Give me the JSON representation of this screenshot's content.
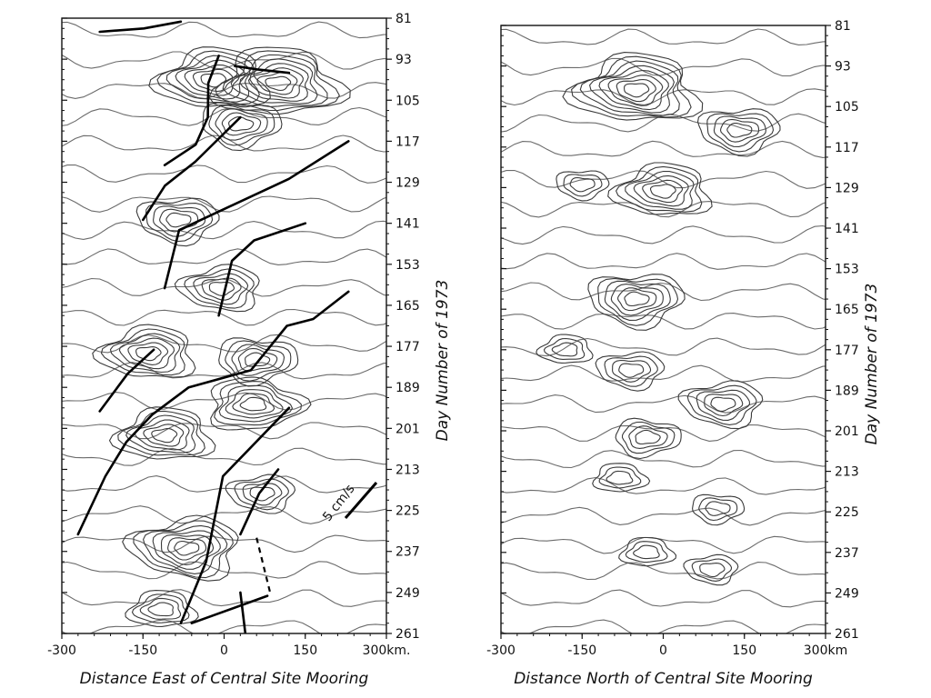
{
  "chart_data": [
    {
      "type": "contour",
      "xlabel": "Distance East of Central Site Mooring",
      "ylabel": "Day Number of 1973",
      "xlim": [
        -300,
        300
      ],
      "ylim": [
        81,
        261
      ],
      "x_ticks": [
        "-300",
        "-150",
        "0",
        "150",
        "300"
      ],
      "x_unit": "km.",
      "y_ticks": [
        "81",
        "93",
        "105",
        "117",
        "129",
        "141",
        "153",
        "165",
        "177",
        "189",
        "201",
        "213",
        "225",
        "237",
        "249",
        "261"
      ],
      "y_inverted": true,
      "scale_bar_label": "5 cm/s",
      "centers": [
        {
          "x": -20,
          "day": 99,
          "rings": 7
        },
        {
          "x": 100,
          "day": 100,
          "rings": 8
        },
        {
          "x": 30,
          "day": 112,
          "rings": 5
        },
        {
          "x": -85,
          "day": 140,
          "rings": 5
        },
        {
          "x": -5,
          "day": 160,
          "rings": 5
        },
        {
          "x": -140,
          "day": 179,
          "rings": 6
        },
        {
          "x": 60,
          "day": 181,
          "rings": 5
        },
        {
          "x": 55,
          "day": 194,
          "rings": 6
        },
        {
          "x": -110,
          "day": 203,
          "rings": 6
        },
        {
          "x": 70,
          "day": 220,
          "rings": 4
        },
        {
          "x": -70,
          "day": 236,
          "rings": 7
        },
        {
          "x": -115,
          "day": 254,
          "rings": 4
        }
      ],
      "tracks": [
        [
          [
            -230,
            85
          ],
          [
            -150,
            84
          ],
          [
            -80,
            82
          ]
        ],
        [
          [
            -10,
            92
          ],
          [
            -25,
            100
          ],
          [
            -30,
            110
          ],
          [
            -50,
            118
          ],
          [
            -110,
            124
          ]
        ],
        [
          [
            20,
            95
          ],
          [
            60,
            96
          ],
          [
            120,
            97
          ]
        ],
        [
          [
            30,
            110
          ],
          [
            -50,
            123
          ],
          [
            -110,
            130
          ],
          [
            -150,
            140
          ]
        ],
        [
          [
            230,
            117
          ],
          [
            120,
            128
          ],
          [
            -80,
            143
          ],
          [
            -110,
            160
          ]
        ],
        [
          [
            150,
            141
          ],
          [
            60,
            146
          ],
          [
            10,
            152
          ],
          [
            -10,
            168
          ]
        ],
        [
          [
            230,
            161
          ],
          [
            160,
            169
          ],
          [
            120,
            171
          ],
          [
            50,
            184
          ],
          [
            -70,
            189
          ],
          [
            -130,
            197
          ],
          [
            -180,
            205
          ],
          [
            -220,
            215
          ],
          [
            -270,
            232
          ]
        ],
        [
          [
            -130,
            178
          ],
          [
            -180,
            185
          ],
          [
            -230,
            196
          ]
        ],
        [
          [
            120,
            195
          ],
          [
            0,
            215
          ],
          [
            -30,
            240
          ],
          [
            -80,
            258
          ]
        ],
        [
          [
            100,
            213
          ],
          [
            60,
            220
          ],
          [
            30,
            232
          ]
        ],
        [
          [
            30,
            249
          ],
          [
            40,
            262
          ]
        ],
        [
          [
            80,
            250
          ],
          [
            -60,
            258
          ]
        ]
      ]
    },
    {
      "type": "contour",
      "xlabel": "Distance North of Central Site Mooring",
      "ylabel": "Day Number of 1973",
      "xlim": [
        -300,
        300
      ],
      "ylim": [
        81,
        261
      ],
      "x_ticks": [
        "-300",
        "-150",
        "0",
        "150",
        "300"
      ],
      "x_unit": "km",
      "y_ticks": [
        "81",
        "93",
        "105",
        "117",
        "129",
        "141",
        "153",
        "165",
        "177",
        "189",
        "201",
        "213",
        "225",
        "237",
        "249",
        "261"
      ],
      "y_inverted": true,
      "centers": [
        {
          "x": -50,
          "day": 100,
          "rings": 8
        },
        {
          "x": 140,
          "day": 112,
          "rings": 5
        },
        {
          "x": 0,
          "day": 130,
          "rings": 6
        },
        {
          "x": -150,
          "day": 128,
          "rings": 3
        },
        {
          "x": -50,
          "day": 162,
          "rings": 6
        },
        {
          "x": -180,
          "day": 177,
          "rings": 3
        },
        {
          "x": -60,
          "day": 183,
          "rings": 4
        },
        {
          "x": 110,
          "day": 193,
          "rings": 5
        },
        {
          "x": -30,
          "day": 203,
          "rings": 4
        },
        {
          "x": -80,
          "day": 215,
          "rings": 3
        },
        {
          "x": 100,
          "day": 224,
          "rings": 3
        },
        {
          "x": -30,
          "day": 237,
          "rings": 3
        },
        {
          "x": 90,
          "day": 242,
          "rings": 3
        }
      ]
    }
  ]
}
